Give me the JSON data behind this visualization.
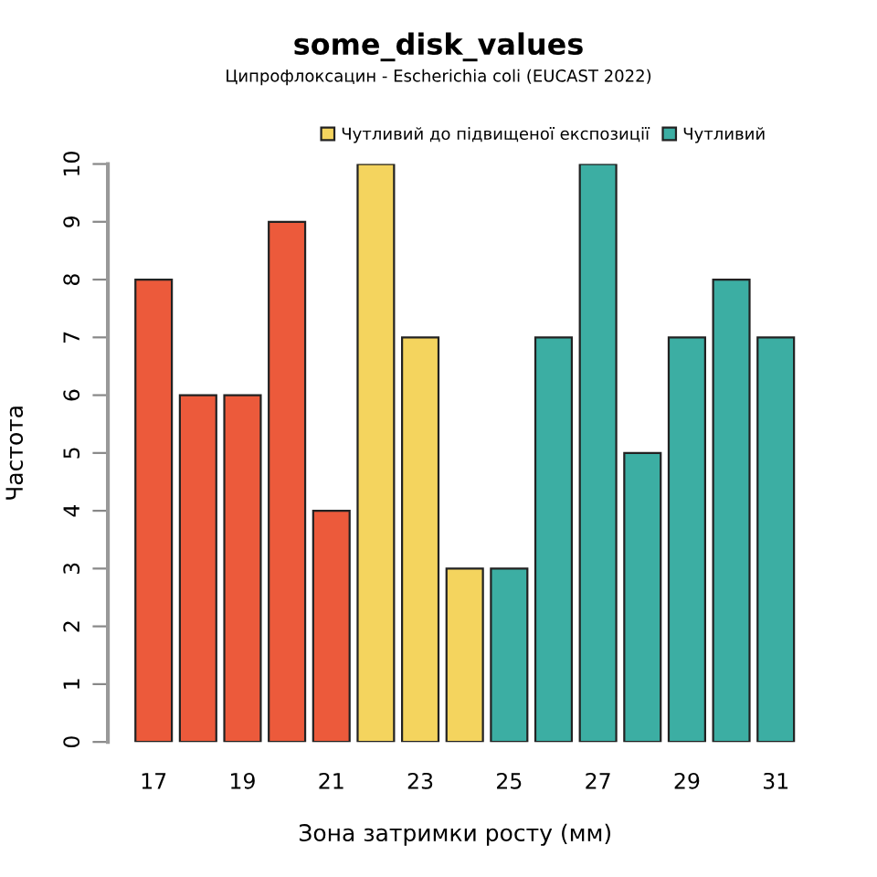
{
  "chart_data": {
    "type": "bar",
    "title": "some_disk_values",
    "subtitle": "Ципрофлоксацин - Escherichia coli (EUCAST 2022)",
    "xlabel": "Зона затримки росту (мм)",
    "ylabel": "Частота",
    "categories": [
      "17",
      null,
      "19",
      null,
      "21",
      null,
      "23",
      null,
      "25",
      null,
      "27",
      null,
      "29",
      null,
      "31"
    ],
    "series": [
      {
        "color": "#ec5a3b",
        "values": [
          8,
          6,
          6,
          9,
          4,
          null,
          null,
          null,
          null,
          null,
          null,
          null,
          null,
          null,
          null
        ]
      },
      {
        "name": "Чутливий до підвищеної експозиції",
        "color": "#f4d45e",
        "values": [
          null,
          null,
          null,
          null,
          null,
          10,
          7,
          3,
          null,
          null,
          null,
          null,
          null,
          null,
          null
        ]
      },
      {
        "name": "Чутливий",
        "color": "#3caea3",
        "values": [
          null,
          null,
          null,
          null,
          null,
          null,
          null,
          null,
          3,
          7,
          10,
          5,
          7,
          8,
          7
        ]
      }
    ],
    "ylim": [
      0,
      10
    ],
    "yticks": [
      0,
      1,
      2,
      3,
      4,
      5,
      6,
      7,
      8,
      9,
      10
    ],
    "grid": false,
    "legend": "top right"
  }
}
